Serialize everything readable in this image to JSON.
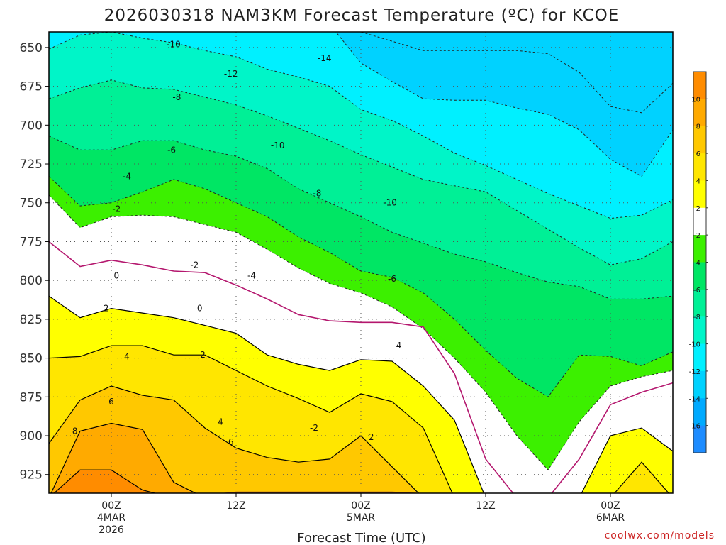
{
  "chart_data": {
    "type": "heatmap",
    "title": "2026030318 NAM3KM Forecast Temperature (ºC) for KCOE",
    "xlabel": "Forecast Time (UTC)",
    "ylabel": "",
    "ylim": [
      937,
      640
    ],
    "yticks": [
      "650",
      "675",
      "700",
      "725",
      "750",
      "775",
      "800",
      "825",
      "850",
      "875",
      "900",
      "925"
    ],
    "x_ticks": [
      {
        "hour": 6,
        "lines": [
          "00Z",
          "4MAR",
          "2026"
        ]
      },
      {
        "hour": 18,
        "lines": [
          "12Z"
        ]
      },
      {
        "hour": 30,
        "lines": [
          "00Z",
          "5MAR"
        ]
      },
      {
        "hour": 42,
        "lines": [
          "12Z"
        ]
      },
      {
        "hour": 54,
        "lines": [
          "00Z",
          "6MAR"
        ]
      }
    ],
    "x_range_hours": [
      0,
      60
    ],
    "colorbar": {
      "levels": [
        -18,
        -16,
        -14,
        -12,
        -10,
        -8,
        -6,
        -4,
        -2,
        2,
        4,
        6,
        8,
        10,
        12
      ],
      "tick_labels": [
        "-16",
        "-14",
        "-12",
        "-10",
        "-8",
        "-6",
        "-4",
        "-2",
        "2",
        "4",
        "6",
        "8",
        "10"
      ],
      "colors": [
        "#1e8cff",
        "#00aaff",
        "#00d2ff",
        "#00f0ff",
        "#00f5c8",
        "#00f096",
        "#00e664",
        "#3cf000",
        "#ffffff",
        "#ffff00",
        "#ffe600",
        "#ffc800",
        "#ffaa00",
        "#ff8c00"
      ]
    },
    "hours": [
      0,
      3,
      6,
      9,
      12,
      15,
      18,
      21,
      24,
      27,
      30,
      33,
      36,
      39,
      42,
      45,
      48,
      51,
      54,
      57,
      60
    ],
    "isotherms": [
      {
        "temp": -14,
        "p": [
          632,
          632,
          632,
          632,
          632,
          632,
          632,
          632,
          632,
          632,
          640,
          646,
          652,
          652,
          652,
          652,
          654,
          666,
          688,
          692,
          673
        ]
      },
      {
        "temp": -12,
        "p": [
          632,
          632,
          632,
          632,
          632,
          632,
          632,
          632,
          632,
          635,
          660,
          672,
          683,
          684,
          684,
          689,
          693,
          703,
          722,
          733,
          703
        ]
      },
      {
        "temp": -10,
        "p": [
          651,
          642,
          640,
          644,
          647,
          652,
          656,
          664,
          669,
          675,
          690,
          697,
          707,
          718,
          726,
          735,
          744,
          752,
          760,
          758,
          748
        ]
      },
      {
        "temp": -8,
        "p": [
          683,
          676,
          671,
          676,
          677,
          682,
          687,
          694,
          702,
          710,
          719,
          727,
          735,
          739,
          743,
          755,
          767,
          779,
          790,
          786,
          775
        ]
      },
      {
        "temp": -6,
        "p": [
          707,
          716,
          716,
          710,
          710,
          716,
          720,
          728,
          741,
          750,
          759,
          769,
          776,
          783,
          788,
          795,
          801,
          804,
          812,
          812,
          810
        ]
      },
      {
        "temp": -4,
        "p": [
          733,
          752,
          750,
          743,
          735,
          741,
          750,
          759,
          772,
          782,
          794,
          798,
          808,
          825,
          845,
          863,
          875,
          848,
          849,
          855,
          846
        ]
      },
      {
        "temp": -2,
        "p": [
          745,
          766,
          759,
          758,
          759,
          764,
          769,
          780,
          792,
          802,
          808,
          817,
          831,
          850,
          872,
          900,
          922,
          891,
          868,
          862,
          858
        ]
      },
      {
        "temp": 0,
        "p": [
          775,
          791,
          787,
          790,
          794,
          795,
          803,
          812,
          822,
          826,
          827,
          827,
          830,
          860,
          915,
          940,
          940,
          915,
          880,
          872,
          866
        ]
      },
      {
        "temp": 2,
        "p": [
          810,
          824,
          818,
          821,
          824,
          829,
          834,
          848,
          854,
          858,
          851,
          852,
          868,
          890,
          940,
          940,
          940,
          940,
          900,
          895,
          910
        ]
      },
      {
        "temp": 4,
        "p": [
          850,
          849,
          842,
          842,
          848,
          848,
          858,
          868,
          876,
          885,
          873,
          878,
          895,
          940,
          940,
          940,
          940,
          940,
          940,
          917,
          940
        ]
      },
      {
        "temp": 6,
        "p": [
          905,
          877,
          868,
          874,
          877,
          895,
          908,
          914,
          917,
          915,
          900,
          920,
          940,
          940,
          940,
          940,
          940,
          940,
          940,
          940,
          940
        ]
      },
      {
        "temp": 8,
        "p": [
          940,
          897,
          892,
          896,
          930,
          940,
          940,
          940,
          940,
          940,
          940,
          940,
          940,
          940,
          940,
          940,
          940,
          940,
          940,
          940,
          940
        ]
      },
      {
        "temp": 10,
        "p": [
          940,
          922,
          922,
          935,
          940,
          940,
          940,
          940,
          940,
          940,
          940,
          940,
          940,
          940,
          940,
          940,
          940,
          940,
          940,
          940,
          940
        ]
      }
    ],
    "contour_labels": [
      {
        "text": "-10",
        "hour": 12.0,
        "p": 648
      },
      {
        "text": "-12",
        "hour": 17.5,
        "p": 667
      },
      {
        "text": "-14",
        "hour": 26.5,
        "p": 657
      },
      {
        "text": "-8",
        "hour": 12.3,
        "p": 682
      },
      {
        "text": "-10",
        "hour": 22.0,
        "p": 713
      },
      {
        "text": "-6",
        "hour": 11.8,
        "p": 716
      },
      {
        "text": "-8",
        "hour": 25.8,
        "p": 744
      },
      {
        "text": "-10",
        "hour": 32.8,
        "p": 750
      },
      {
        "text": "-4",
        "hour": 7.5,
        "p": 733
      },
      {
        "text": "-6",
        "hour": 33.0,
        "p": 799
      },
      {
        "text": "-4",
        "hour": 33.5,
        "p": 842
      },
      {
        "text": "-4",
        "hour": 19.5,
        "p": 797
      },
      {
        "text": "-2",
        "hour": 6.5,
        "p": 754
      },
      {
        "text": "-2",
        "hour": 14.0,
        "p": 790
      },
      {
        "text": "-2",
        "hour": 25.5,
        "p": 895
      },
      {
        "text": "2",
        "hour": 31.0,
        "p": 901
      },
      {
        "text": "0",
        "hour": 6.5,
        "p": 797
      },
      {
        "text": "0",
        "hour": 14.5,
        "p": 818
      },
      {
        "text": "2",
        "hour": 5.5,
        "p": 818
      },
      {
        "text": "4",
        "hour": 7.5,
        "p": 849
      },
      {
        "text": "2",
        "hour": 14.8,
        "p": 848
      },
      {
        "text": "6",
        "hour": 6.0,
        "p": 878
      },
      {
        "text": "4",
        "hour": 16.5,
        "p": 891
      },
      {
        "text": "8",
        "hour": 2.5,
        "p": 897
      },
      {
        "text": "6",
        "hour": 17.5,
        "p": 904
      }
    ],
    "terrain_p": [
      940,
      940,
      939,
      938,
      938,
      938,
      936,
      936,
      936,
      936,
      936,
      936,
      937,
      937,
      938,
      938,
      938,
      938,
      938,
      938,
      940
    ]
  },
  "credit": "coolwx.com/models",
  "colors": {
    "contour_negative": "#222222",
    "contour_zero": "#b4176e",
    "terrain": "#a0522d"
  }
}
